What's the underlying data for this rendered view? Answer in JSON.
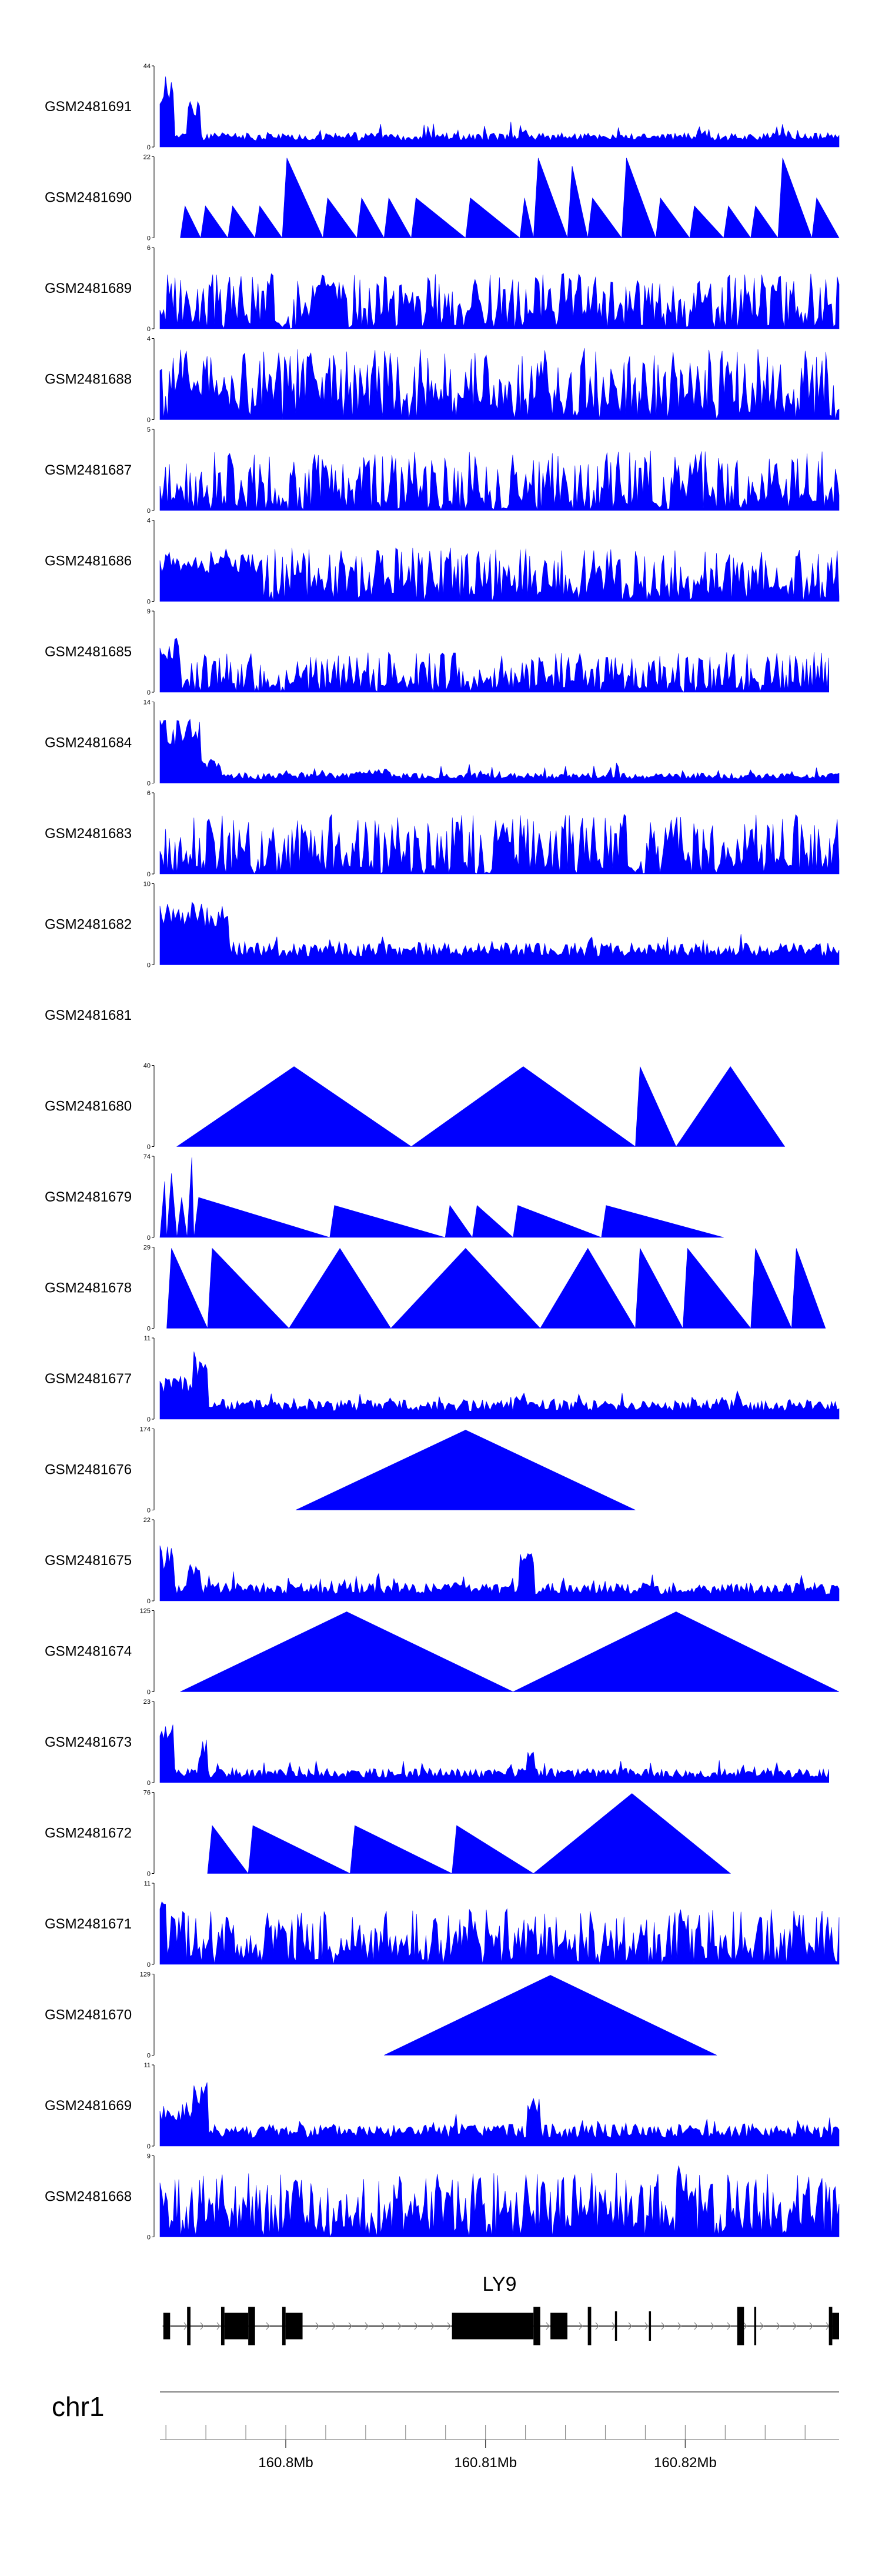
{
  "chart_data": {
    "type": "area",
    "title": "",
    "chromosome": "chr1",
    "gene": "LY9",
    "xlim_mb": [
      160.7937,
      160.8277
    ],
    "x_ticks": [
      {
        "value": 160.8,
        "label": "160.8Mb"
      },
      {
        "value": 160.81,
        "label": "160.81Mb"
      },
      {
        "value": 160.82,
        "label": "160.82Mb"
      }
    ],
    "minor_tick_step_mb": 0.002,
    "colors": {
      "signal": "#0000ff",
      "gene": "#000000",
      "axis": "#555555",
      "intron_arrow": "#888888"
    },
    "tracks": [
      {
        "name": "GSM2481691",
        "ymax": 44,
        "ymin": 0,
        "kind": "dense",
        "seed": 11,
        "hot": [
          [
            0.0,
            0.02,
            0.9
          ],
          [
            0.04,
            0.06,
            0.6
          ],
          [
            0.53,
            0.54,
            0.3
          ]
        ],
        "base": 0.08,
        "var": 0.1
      },
      {
        "name": "GSM2481690",
        "ymax": 22,
        "ymin": 0,
        "kind": "tri",
        "peaks": [
          [
            0.03,
            0.06,
            0.4
          ],
          [
            0.06,
            0.1,
            0.4
          ],
          [
            0.1,
            0.14,
            0.4
          ],
          [
            0.14,
            0.18,
            0.4
          ],
          [
            0.18,
            0.24,
            1.0
          ],
          [
            0.24,
            0.29,
            0.5
          ],
          [
            0.29,
            0.33,
            0.5
          ],
          [
            0.33,
            0.37,
            0.5
          ],
          [
            0.37,
            0.45,
            0.5
          ],
          [
            0.45,
            0.53,
            0.5
          ],
          [
            0.53,
            0.55,
            0.5
          ],
          [
            0.55,
            0.6,
            1.0
          ],
          [
            0.6,
            0.63,
            0.9
          ],
          [
            0.63,
            0.68,
            0.5
          ],
          [
            0.68,
            0.73,
            1.0
          ],
          [
            0.73,
            0.78,
            0.5
          ],
          [
            0.78,
            0.83,
            0.4
          ],
          [
            0.83,
            0.87,
            0.4
          ],
          [
            0.87,
            0.91,
            0.4
          ],
          [
            0.91,
            0.96,
            1.0
          ],
          [
            0.96,
            1.0,
            0.5
          ]
        ]
      },
      {
        "name": "GSM2481689",
        "ymax": 6,
        "ymin": 0,
        "kind": "spiky",
        "seed": 3,
        "base": 0.25,
        "var": 0.45,
        "hot": [
          [
            0.23,
            0.27,
            0.6
          ]
        ]
      },
      {
        "name": "GSM2481688",
        "ymax": 4,
        "ymin": 0,
        "kind": "spiky",
        "seed": 5,
        "base": 0.3,
        "var": 0.6,
        "hot": [
          [
            0.02,
            0.1,
            0.5
          ]
        ]
      },
      {
        "name": "GSM2481687",
        "ymax": 5,
        "ymin": 0,
        "kind": "spiky",
        "seed": 7,
        "base": 0.25,
        "var": 0.5,
        "hot": [
          [
            0.3,
            0.31,
            0.9
          ]
        ]
      },
      {
        "name": "GSM2481686",
        "ymax": 4,
        "ymin": 0,
        "kind": "spiky",
        "seed": 9,
        "base": 0.22,
        "var": 0.45,
        "hot": [
          [
            0.0,
            0.15,
            0.6
          ]
        ]
      },
      {
        "name": "GSM2481685",
        "ymax": 9,
        "ymin": 0,
        "kind": "spiky",
        "seed": 13,
        "base": 0.15,
        "var": 0.35,
        "hot": [
          [
            0.0,
            0.03,
            0.7
          ]
        ],
        "end": 0.985
      },
      {
        "name": "GSM2481684",
        "ymax": 14,
        "ymin": 0,
        "kind": "dense",
        "seed": 15,
        "hot": [
          [
            0.0,
            0.06,
            0.8
          ],
          [
            0.06,
            0.09,
            0.3
          ],
          [
            0.28,
            0.34,
            0.18
          ]
        ],
        "base": 0.05,
        "var": 0.08
      },
      {
        "name": "GSM2481683",
        "ymax": 6,
        "ymin": 0,
        "kind": "spiky",
        "seed": 17,
        "base": 0.25,
        "var": 0.5,
        "hot": [
          [
            0.5,
            0.52,
            0.7
          ]
        ]
      },
      {
        "name": "GSM2481682",
        "ymax": 10,
        "ymin": 0,
        "kind": "dense",
        "seed": 19,
        "hot": [
          [
            0.0,
            0.1,
            0.8
          ]
        ],
        "base": 0.1,
        "var": 0.18
      },
      {
        "name": "GSM2481681",
        "ymax": null,
        "ymin": null,
        "kind": "empty"
      },
      {
        "name": "GSM2481680",
        "ymax": 40,
        "ymin": 0,
        "kind": "tri",
        "peaks": [
          [
            0.025,
            0.37,
            1.0
          ],
          [
            0.37,
            0.7,
            1.0
          ],
          [
            0.7,
            0.76,
            1.0
          ],
          [
            0.76,
            0.92,
            1.0
          ]
        ]
      },
      {
        "name": "GSM2481679",
        "ymax": 74,
        "ymin": 0,
        "kind": "tri",
        "peaks": [
          [
            0.0,
            0.01,
            0.7
          ],
          [
            0.01,
            0.025,
            0.8
          ],
          [
            0.025,
            0.04,
            0.5
          ],
          [
            0.04,
            0.05,
            1.0
          ],
          [
            0.05,
            0.25,
            0.5
          ],
          [
            0.25,
            0.42,
            0.4
          ],
          [
            0.42,
            0.46,
            0.4
          ],
          [
            0.46,
            0.52,
            0.4
          ],
          [
            0.52,
            0.65,
            0.4
          ],
          [
            0.65,
            0.83,
            0.4
          ]
        ]
      },
      {
        "name": "GSM2481678",
        "ymax": 29,
        "ymin": 0,
        "kind": "tri",
        "peaks": [
          [
            0.01,
            0.07,
            1.0
          ],
          [
            0.07,
            0.19,
            1.0
          ],
          [
            0.19,
            0.34,
            1.0
          ],
          [
            0.34,
            0.56,
            1.0
          ],
          [
            0.56,
            0.7,
            1.0
          ],
          [
            0.7,
            0.77,
            1.0
          ],
          [
            0.77,
            0.87,
            1.0
          ],
          [
            0.87,
            0.93,
            1.0
          ],
          [
            0.93,
            0.98,
            1.0
          ]
        ]
      },
      {
        "name": "GSM2481677",
        "ymax": 11,
        "ymin": 0,
        "kind": "dense",
        "seed": 23,
        "hot": [
          [
            0.0,
            0.07,
            0.55
          ],
          [
            0.05,
            0.07,
            0.9
          ],
          [
            0.52,
            0.54,
            0.4
          ]
        ],
        "base": 0.1,
        "var": 0.15
      },
      {
        "name": "GSM2481676",
        "ymax": 174,
        "ymin": 0,
        "kind": "tri",
        "peaks": [
          [
            0.2,
            0.7,
            1.0
          ]
        ]
      },
      {
        "name": "GSM2481675",
        "ymax": 22,
        "ymin": 0,
        "kind": "dense",
        "seed": 29,
        "hot": [
          [
            0.0,
            0.02,
            0.7
          ],
          [
            0.04,
            0.06,
            0.5
          ],
          [
            0.53,
            0.55,
            0.6
          ]
        ],
        "base": 0.08,
        "var": 0.15
      },
      {
        "name": "GSM2481674",
        "ymax": 125,
        "ymin": 0,
        "kind": "tri",
        "peaks": [
          [
            0.03,
            0.52,
            1.0
          ],
          [
            0.52,
            1.0,
            1.0
          ]
        ]
      },
      {
        "name": "GSM2481673",
        "ymax": 23,
        "ymin": 0,
        "kind": "dense",
        "seed": 31,
        "hot": [
          [
            0.0,
            0.02,
            0.8
          ],
          [
            0.06,
            0.07,
            0.6
          ],
          [
            0.54,
            0.55,
            0.5
          ]
        ],
        "base": 0.06,
        "var": 0.12,
        "end": 0.985
      },
      {
        "name": "GSM2481672",
        "ymax": 76,
        "ymin": 0,
        "kind": "tri",
        "peaks": [
          [
            0.07,
            0.13,
            0.6
          ],
          [
            0.13,
            0.28,
            0.6
          ],
          [
            0.28,
            0.43,
            0.6
          ],
          [
            0.43,
            0.55,
            0.6
          ],
          [
            0.55,
            0.84,
            1.0
          ]
        ]
      },
      {
        "name": "GSM2481671",
        "ymax": 11,
        "ymin": 0,
        "kind": "spiky",
        "seed": 37,
        "base": 0.25,
        "var": 0.45,
        "hot": [
          [
            0.0,
            0.01,
            0.8
          ]
        ]
      },
      {
        "name": "GSM2481670",
        "ymax": 129,
        "ymin": 0,
        "kind": "tri",
        "peaks": [
          [
            0.33,
            0.82,
            1.0
          ]
        ]
      },
      {
        "name": "GSM2481669",
        "ymax": 11,
        "ymin": 0,
        "kind": "dense",
        "seed": 41,
        "hot": [
          [
            0.0,
            0.07,
            0.55
          ],
          [
            0.05,
            0.07,
            0.8
          ],
          [
            0.54,
            0.56,
            0.6
          ]
        ],
        "base": 0.1,
        "var": 0.18
      },
      {
        "name": "GSM2481668",
        "ymax": 9,
        "ymin": 0,
        "kind": "spiky",
        "seed": 43,
        "base": 0.3,
        "var": 0.5,
        "hot": [
          [
            0.12,
            0.13,
            0.6
          ],
          [
            0.76,
            0.77,
            0.9
          ]
        ]
      }
    ],
    "gene_model": {
      "name": "LY9",
      "exons_frac": [
        [
          0.005,
          0.015,
          0.9
        ],
        [
          0.04,
          0.045,
          1.3
        ],
        [
          0.09,
          0.095,
          1.3
        ],
        [
          0.095,
          0.13,
          0.9
        ],
        [
          0.13,
          0.14,
          1.3
        ],
        [
          0.18,
          0.185,
          1.3
        ],
        [
          0.185,
          0.21,
          0.9
        ],
        [
          0.43,
          0.55,
          0.9
        ],
        [
          0.55,
          0.56,
          1.3
        ],
        [
          0.575,
          0.6,
          0.9
        ],
        [
          0.63,
          0.635,
          1.3
        ],
        [
          0.67,
          0.673,
          1.0
        ],
        [
          0.72,
          0.723,
          1.0
        ],
        [
          0.85,
          0.86,
          1.3
        ],
        [
          0.875,
          0.878,
          1.3
        ],
        [
          0.985,
          0.99,
          1.3
        ],
        [
          0.99,
          1.0,
          0.9
        ]
      ]
    }
  }
}
